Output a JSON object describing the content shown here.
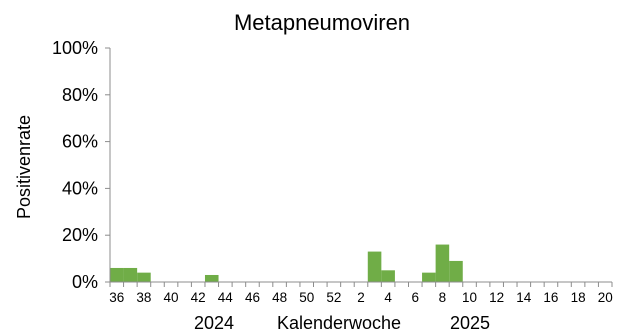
{
  "chart_data": {
    "type": "bar",
    "title": "Metapneumoviren",
    "xlabel": "Kalenderwoche",
    "ylabel": "Positivenrate",
    "year_labels": [
      "2024",
      "2025"
    ],
    "ylim": [
      0,
      100
    ],
    "y_ticks": [
      "0%",
      "20%",
      "40%",
      "60%",
      "80%",
      "100%"
    ],
    "grid": false,
    "categories": [
      "36",
      "37",
      "38",
      "39",
      "40",
      "41",
      "42",
      "43",
      "44",
      "45",
      "46",
      "47",
      "48",
      "49",
      "50",
      "51",
      "52",
      "1",
      "2",
      "3",
      "4",
      "5",
      "6",
      "7",
      "8",
      "9",
      "10",
      "11",
      "12",
      "13",
      "14",
      "15",
      "16",
      "17",
      "18",
      "19",
      "20"
    ],
    "x_tick_labels": [
      "36",
      "38",
      "40",
      "42",
      "44",
      "46",
      "48",
      "50",
      "52",
      "2",
      "4",
      "6",
      "8",
      "10",
      "12",
      "14",
      "16",
      "18",
      "20"
    ],
    "values": [
      6,
      6,
      4,
      0,
      0,
      0,
      0,
      3,
      0,
      0,
      0,
      0,
      0,
      0,
      0,
      0,
      0,
      0,
      0,
      13,
      5,
      0,
      0,
      4,
      16,
      9,
      0,
      0,
      0,
      0,
      0,
      0,
      0,
      0,
      0,
      0,
      0
    ],
    "bar_color": "#70ad47"
  }
}
